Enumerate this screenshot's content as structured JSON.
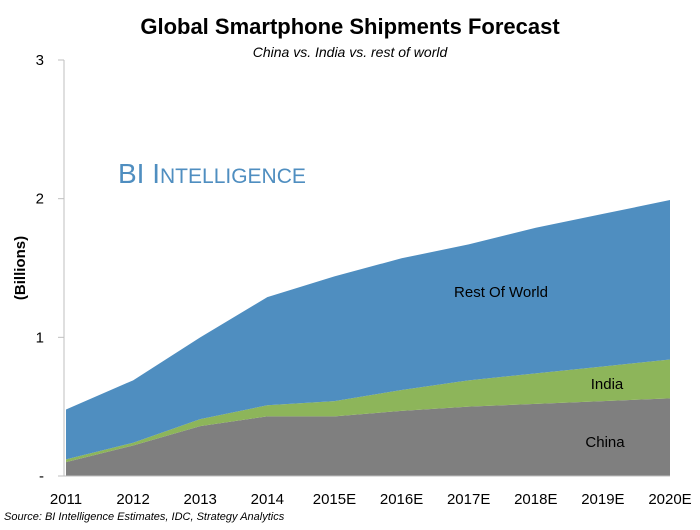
{
  "chart_data": {
    "type": "area",
    "stacked": true,
    "title": "Global Smartphone Shipments Forecast",
    "subtitle": "China vs. India vs. rest of world",
    "ylabel": "(Billions)",
    "xlabel": "",
    "ylim": [
      0,
      3
    ],
    "yticks": [
      {
        "value": 0,
        "label": "-"
      },
      {
        "value": 1,
        "label": "1"
      },
      {
        "value": 2,
        "label": "2"
      },
      {
        "value": 3,
        "label": "3"
      }
    ],
    "grid": false,
    "legend": "none",
    "categories": [
      "2011",
      "2012",
      "2013",
      "2014",
      "2015E",
      "2016E",
      "2017E",
      "2018E",
      "2019E",
      "2020E"
    ],
    "series": [
      {
        "name": "China",
        "color": "#7f7f7f",
        "values": [
          0.1,
          0.22,
          0.36,
          0.43,
          0.43,
          0.47,
          0.5,
          0.52,
          0.54,
          0.56
        ]
      },
      {
        "name": "India",
        "color": "#8db55a",
        "values": [
          0.02,
          0.02,
          0.05,
          0.08,
          0.11,
          0.15,
          0.19,
          0.22,
          0.25,
          0.28
        ]
      },
      {
        "name": "Rest Of World",
        "color": "#4f8ec0",
        "values": [
          0.36,
          0.45,
          0.59,
          0.78,
          0.9,
          0.95,
          0.98,
          1.05,
          1.1,
          1.15
        ]
      }
    ],
    "watermark": "BI Intelligence",
    "source": "Source: BI Intelligence Estimates, IDC, Strategy Analytics"
  }
}
